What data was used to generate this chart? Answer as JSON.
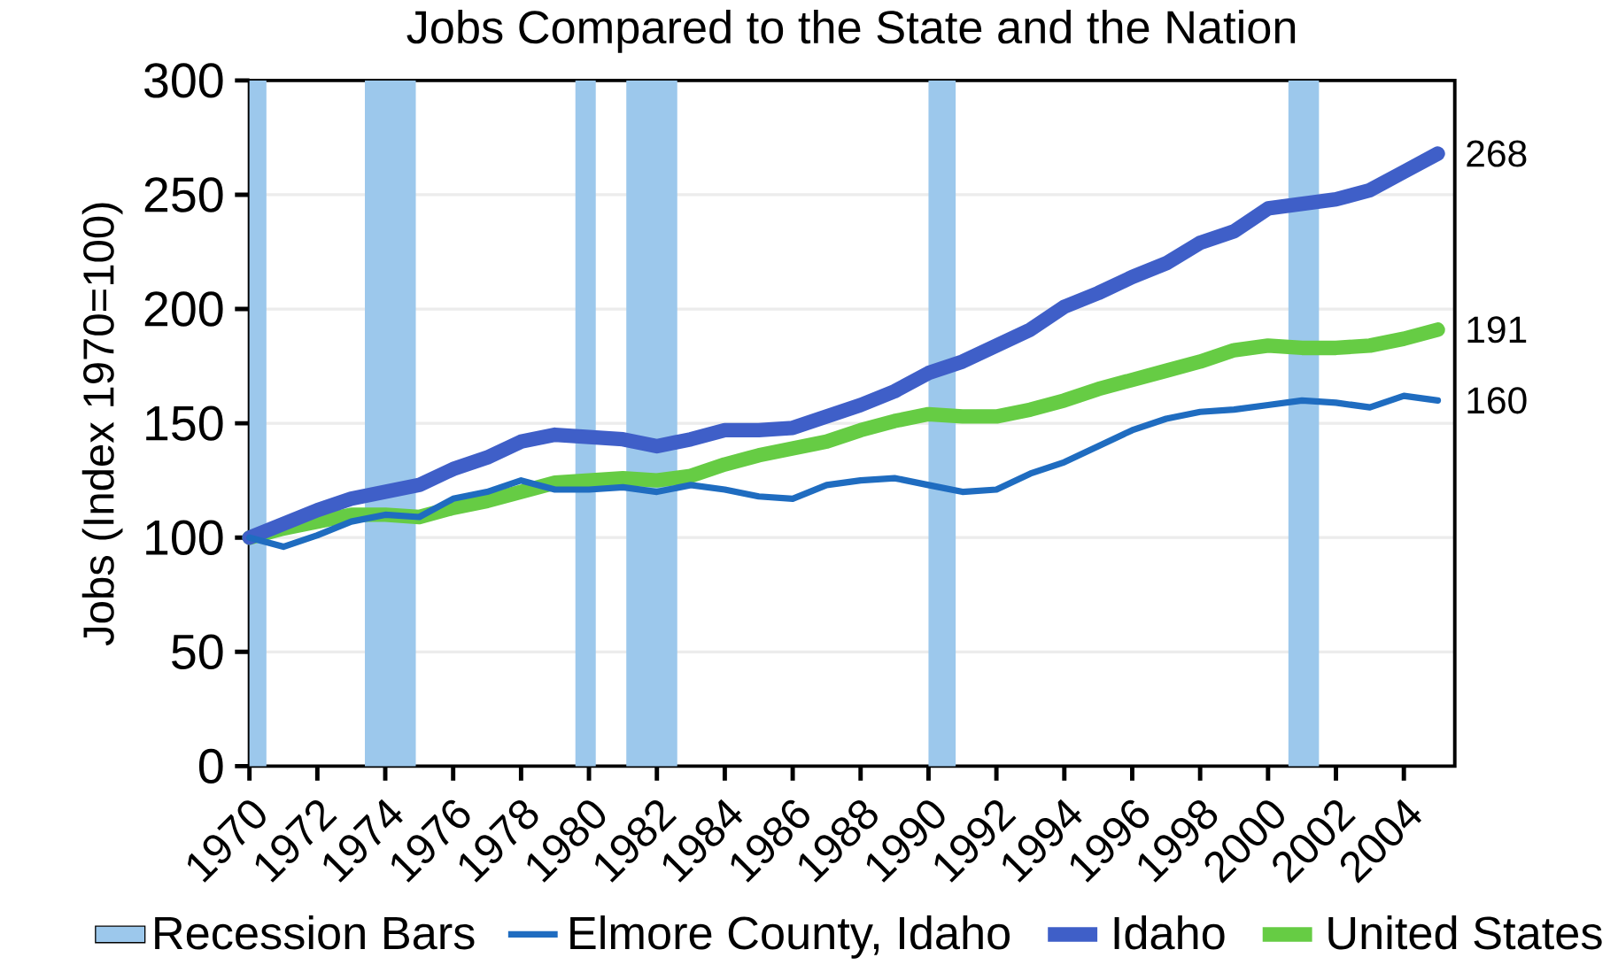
{
  "chart_data": {
    "type": "line",
    "title": "Jobs Compared to the State and the Nation",
    "ylabel": "Jobs (Index 1970=100)",
    "x": [
      1970,
      1971,
      1972,
      1973,
      1974,
      1975,
      1976,
      1977,
      1978,
      1979,
      1980,
      1981,
      1982,
      1983,
      1984,
      1985,
      1986,
      1987,
      1988,
      1989,
      1990,
      1991,
      1992,
      1993,
      1994,
      1995,
      1996,
      1997,
      1998,
      1999,
      2000,
      2001,
      2002,
      2003,
      2004,
      2005
    ],
    "xlim": [
      1970,
      2005.5
    ],
    "xticks": [
      1970,
      1972,
      1974,
      1976,
      1978,
      1980,
      1982,
      1984,
      1986,
      1988,
      1990,
      1992,
      1994,
      1996,
      1998,
      2000,
      2002,
      2004
    ],
    "ylim": [
      0,
      300
    ],
    "yticks": [
      0,
      50,
      100,
      150,
      200,
      250,
      300
    ],
    "grid": "y",
    "legend": "bottom",
    "bands": [
      {
        "axis": "x",
        "from": 1970,
        "to": 1970.5,
        "label": "Recession Bars",
        "color": "#9cc8ec"
      },
      {
        "axis": "x",
        "from": 1973.4,
        "to": 1974.9,
        "color": "#9cc8ec"
      },
      {
        "axis": "x",
        "from": 1979.6,
        "to": 1980.2,
        "color": "#9cc8ec"
      },
      {
        "axis": "x",
        "from": 1981.1,
        "to": 1982.6,
        "color": "#9cc8ec"
      },
      {
        "axis": "x",
        "from": 1990.0,
        "to": 1990.8,
        "color": "#9cc8ec"
      },
      {
        "axis": "x",
        "from": 2000.6,
        "to": 2001.5,
        "color": "#9cc8ec"
      }
    ],
    "series": [
      {
        "name": "Elmore County, Idaho",
        "color": "#1f6cc0",
        "values": [
          100,
          96,
          101,
          107,
          110,
          109,
          117,
          120,
          125,
          121,
          121,
          122,
          120,
          123,
          121,
          118,
          117,
          123,
          125,
          126,
          123,
          120,
          121,
          128,
          133,
          140,
          147,
          152,
          155,
          156,
          158,
          160,
          159,
          157,
          162,
          160
        ],
        "value_labels": [
          null,
          null,
          null,
          null,
          null,
          null,
          null,
          null,
          null,
          null,
          null,
          null,
          null,
          null,
          null,
          null,
          null,
          null,
          null,
          null,
          null,
          null,
          null,
          null,
          null,
          null,
          null,
          null,
          null,
          null,
          null,
          null,
          null,
          null,
          null,
          "160"
        ]
      },
      {
        "name": "Idaho",
        "color": "#3f5fc8",
        "values": [
          100,
          106,
          112,
          117,
          120,
          123,
          130,
          135,
          142,
          145,
          144,
          143,
          140,
          143,
          147,
          147,
          148,
          153,
          158,
          164,
          172,
          177,
          184,
          191,
          201,
          207,
          214,
          220,
          229,
          234,
          244,
          246,
          248,
          252,
          260,
          268
        ],
        "value_labels": [
          null,
          null,
          null,
          null,
          null,
          null,
          null,
          null,
          null,
          null,
          null,
          null,
          null,
          null,
          null,
          null,
          null,
          null,
          null,
          null,
          null,
          null,
          null,
          null,
          null,
          null,
          null,
          null,
          null,
          null,
          null,
          null,
          null,
          null,
          null,
          "268"
        ]
      },
      {
        "name": "United States",
        "color": "#66cc44",
        "values": [
          100,
          104,
          107,
          110,
          110,
          109,
          113,
          116,
          120,
          124,
          125,
          126,
          125,
          127,
          132,
          136,
          139,
          142,
          147,
          151,
          154,
          153,
          153,
          156,
          160,
          165,
          169,
          173,
          177,
          182,
          184,
          183,
          183,
          184,
          187,
          191
        ],
        "value_labels": [
          null,
          null,
          null,
          null,
          null,
          null,
          null,
          null,
          null,
          null,
          null,
          null,
          null,
          null,
          null,
          null,
          null,
          null,
          null,
          null,
          null,
          null,
          null,
          null,
          null,
          null,
          null,
          null,
          null,
          null,
          null,
          null,
          null,
          null,
          null,
          "191"
        ]
      }
    ]
  }
}
